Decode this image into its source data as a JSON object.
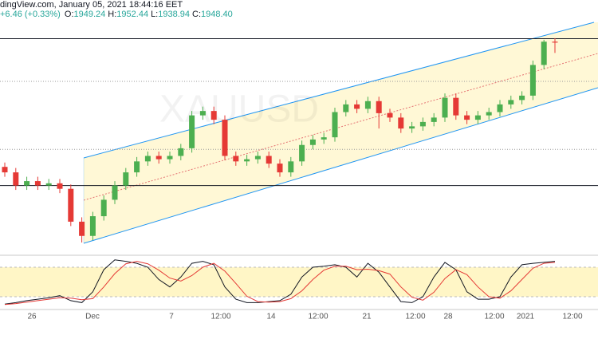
{
  "header": {
    "source": "dingView.com, January 05, 2021 18:44:16 EET",
    "change": "+6.46 (+0.33%)",
    "ohlc": [
      {
        "label": "O:",
        "value": "1949.24"
      },
      {
        "label": "H:",
        "value": "1952.44"
      },
      {
        "label": "L:",
        "value": "1938.94"
      },
      {
        "label": "C:",
        "value": "1948.40"
      }
    ]
  },
  "chart_data": [
    {
      "type": "candlestick",
      "watermark": "XAUUSD",
      "up_color": "#4caf50",
      "down_color": "#e53935",
      "x_labels": [
        "26",
        "Dec",
        "7",
        "12:00",
        "14",
        "12:00",
        "21",
        "12:00",
        "28",
        "12:00",
        "2021",
        "12:00"
      ],
      "ylim": [
        1758,
        1980
      ],
      "levels": [
        {
          "value": 1952,
          "style": "solid"
        },
        {
          "value": 1818,
          "style": "solid"
        },
        {
          "value": 1913,
          "style": "dotted"
        },
        {
          "value": 1851,
          "style": "dotted"
        }
      ],
      "open": [
        1835,
        1830,
        1818,
        1822,
        1818,
        1820,
        1815,
        1785,
        1772,
        1790,
        1805,
        1818,
        1830,
        1840,
        1845,
        1842,
        1845,
        1852,
        1882,
        1886,
        1878,
        1845,
        1840,
        1842,
        1845,
        1838,
        1830,
        1840,
        1855,
        1860,
        1862,
        1885,
        1892,
        1888,
        1895,
        1884,
        1880,
        1870,
        1872,
        1876,
        1880,
        1898,
        1882,
        1878,
        1882,
        1885,
        1892,
        1896,
        1900,
        1928,
        1949.24
      ],
      "high": [
        1839,
        1834,
        1826,
        1826,
        1824,
        1824,
        1819,
        1789,
        1794,
        1809,
        1822,
        1834,
        1844,
        1849,
        1849,
        1849,
        1856,
        1886,
        1890,
        1890,
        1882,
        1849,
        1846,
        1849,
        1849,
        1842,
        1844,
        1859,
        1864,
        1866,
        1889,
        1896,
        1896,
        1899,
        1899,
        1888,
        1884,
        1876,
        1880,
        1884,
        1902,
        1902,
        1886,
        1886,
        1889,
        1896,
        1900,
        1904,
        1932,
        1951,
        1952.44
      ],
      "low": [
        1826,
        1814,
        1814,
        1814,
        1814,
        1811,
        1781,
        1766,
        1768,
        1786,
        1801,
        1814,
        1826,
        1836,
        1838,
        1838,
        1841,
        1848,
        1878,
        1874,
        1841,
        1836,
        1836,
        1838,
        1834,
        1826,
        1826,
        1836,
        1851,
        1856,
        1858,
        1881,
        1884,
        1884,
        1870,
        1876,
        1866,
        1866,
        1868,
        1872,
        1876,
        1878,
        1874,
        1874,
        1878,
        1881,
        1888,
        1892,
        1896,
        1924,
        1938.94
      ],
      "close": [
        1830,
        1818,
        1822,
        1818,
        1820,
        1815,
        1785,
        1772,
        1790,
        1805,
        1818,
        1830,
        1840,
        1845,
        1842,
        1845,
        1852,
        1882,
        1886,
        1878,
        1845,
        1840,
        1842,
        1845,
        1838,
        1830,
        1840,
        1855,
        1860,
        1862,
        1885,
        1892,
        1888,
        1895,
        1884,
        1880,
        1870,
        1872,
        1876,
        1880,
        1898,
        1882,
        1878,
        1882,
        1885,
        1892,
        1896,
        1900,
        1928,
        1949.24,
        1948.4
      ]
    },
    {
      "type": "line",
      "ylim": [
        0,
        100
      ],
      "bands": [
        20,
        80
      ],
      "series": [
        {
          "color": "#131722",
          "values": [
            5,
            8,
            12,
            15,
            18,
            22,
            12,
            8,
            30,
            75,
            95,
            92,
            88,
            80,
            55,
            40,
            60,
            88,
            92,
            85,
            40,
            15,
            8,
            8,
            10,
            12,
            25,
            60,
            80,
            82,
            85,
            80,
            60,
            88,
            70,
            40,
            10,
            8,
            20,
            60,
            90,
            75,
            30,
            15,
            15,
            20,
            60,
            85,
            88,
            90,
            92
          ]
        },
        {
          "color": "#e53935",
          "values": [
            4,
            6,
            9,
            12,
            15,
            18,
            17,
            14,
            16,
            40,
            67,
            87,
            92,
            87,
            74,
            58,
            52,
            63,
            80,
            88,
            72,
            47,
            21,
            10,
            9,
            10,
            16,
            32,
            55,
            74,
            82,
            82,
            75,
            76,
            73,
            66,
            40,
            19,
            13,
            29,
            57,
            75,
            65,
            40,
            20,
            17,
            32,
            55,
            78,
            88,
            90
          ]
        }
      ]
    }
  ]
}
